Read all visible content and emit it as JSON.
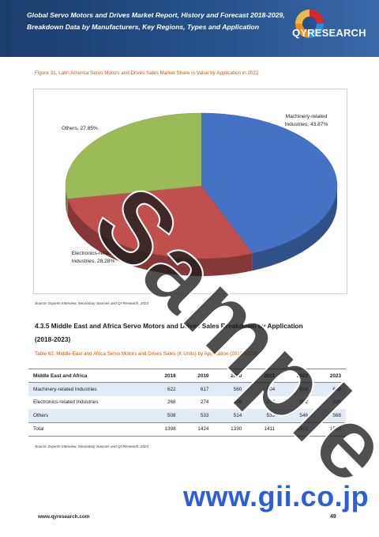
{
  "header": {
    "title_line1": "Global Servo Motors and Drives Market Report, History and Forecast 2018-2029,",
    "title_line2": "Breakdown Data by Manufacturers, Key Regions, Types and Application",
    "logo_text": "QYRESEARCH",
    "logo_colors": {
      "orange": "#f28c1c",
      "blue": "#2a8fd6",
      "red": "#d7262c"
    }
  },
  "figure": {
    "caption": "Figure 31.   Latin America Servo Motors and Drives Sales Market Share in Value by Application in 2022",
    "source": "Source: Experts Interview, Secondary Sources and QYResearch, 2023"
  },
  "chart_data": {
    "type": "pie",
    "title": "",
    "labels": [
      "Machinery-related Industries",
      "Electronics-related Industries",
      "Others"
    ],
    "values": [
      43.87,
      28.28,
      27.85
    ],
    "colors": [
      "#4472c4",
      "#c0504d",
      "#9bbb59"
    ],
    "data_labels": [
      [
        "Machinery-related",
        "Industries, 43.87%"
      ],
      [
        "Electronics-related",
        "Industries, 28.28%"
      ],
      [
        "Others, 27.85%"
      ]
    ],
    "style": "3d"
  },
  "section": {
    "heading_line1": "4.3.5   Middle East and Africa Servo Motors and Drives Sales Breakdown by Application",
    "heading_line2": "(2018-2023)"
  },
  "table": {
    "caption": "Table 62.   Middle East and Africa Servo Motors and Drives Sales (K Units) by Application (2018-2023)",
    "columns": [
      "Middle East and Africa",
      "2018",
      "2019",
      "2020",
      "2021",
      "2022",
      "2023"
    ],
    "rows": [
      [
        "Machinery-related Industries",
        "622",
        "617",
        "560",
        "604",
        "624",
        "669"
      ],
      [
        "Electronics-related Industries",
        "268",
        "274",
        "256",
        "274",
        "302",
        "326"
      ],
      [
        "Others",
        "508",
        "533",
        "514",
        "533",
        "546",
        "568"
      ],
      [
        "Total",
        "1398",
        "1424",
        "1330",
        "1411",
        "1472",
        "1563"
      ]
    ],
    "source": "Source: Experts Interview, Secondary Sources and QYResearch, 2023"
  },
  "watermark": "Sample",
  "gii_text": "www.gii.co.jp",
  "footer": {
    "url": "www.qyresearch.com",
    "page": "49"
  }
}
